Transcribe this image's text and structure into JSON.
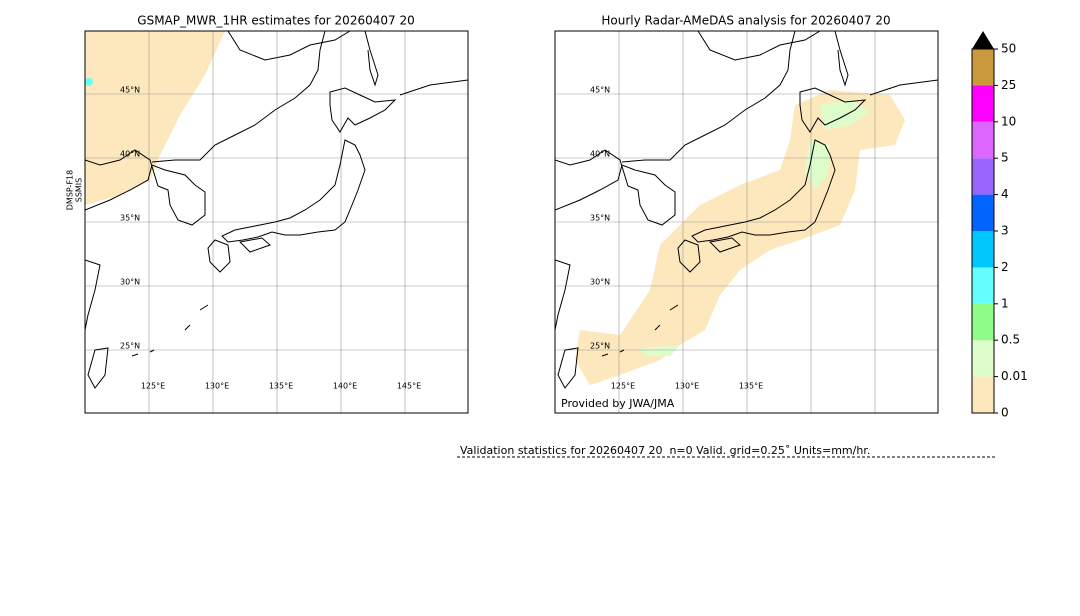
{
  "left_panel": {
    "title": "GSMAP_MWR_1HR estimates for 20260407 20",
    "satellite_label": [
      "DMSP-F18",
      "SSMIS"
    ],
    "lat_labels": [
      "45°N",
      "40°N",
      "35°N",
      "30°N",
      "25°N"
    ],
    "lon_labels": [
      "125°E",
      "130°E",
      "135°E",
      "140°E",
      "145°E"
    ]
  },
  "right_panel": {
    "title": "Hourly Radar-AMeDAS analysis for 20260407 20",
    "lat_labels": [
      "45°N",
      "40°N",
      "35°N",
      "30°N",
      "25°N"
    ],
    "lon_labels": [
      "125°E",
      "130°E",
      "135°E"
    ],
    "credit": "Provided by JWA/JMA"
  },
  "colorbar": {
    "levels": [
      0,
      0.01,
      0.5,
      1,
      2,
      3,
      4,
      5,
      10,
      25,
      50
    ],
    "colors": [
      "#fde8bd",
      "#ddfdcb",
      "#90fd86",
      "#66fdfd",
      "#00c8fd",
      "#0064fd",
      "#9966fd",
      "#dd66fd",
      "#fd00fd",
      "#cc9a3e"
    ],
    "extend_color": "#000000"
  },
  "validation": "Validation statistics for 20260407 20  n=0 Valid. grid=0.25˚ Units=mm/hr."
}
